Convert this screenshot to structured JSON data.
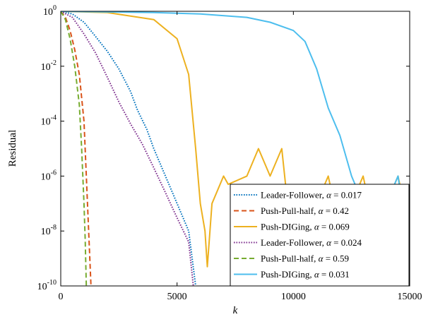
{
  "chart_data": {
    "type": "line",
    "title": "",
    "xlabel": "k",
    "ylabel": "Residual",
    "xlim": [
      0,
      15000
    ],
    "ylim": [
      1e-10,
      1
    ],
    "yscale": "log",
    "grid": false,
    "legend_position": "bottom-right",
    "x_ticks": [
      {
        "value": 0,
        "label": "0"
      },
      {
        "value": 5000,
        "label": "5000"
      },
      {
        "value": 10000,
        "label": "10000"
      },
      {
        "value": 15000,
        "label": "15000"
      }
    ],
    "y_ticks": [
      {
        "value": 1,
        "base": "10",
        "exp": "0"
      },
      {
        "value": 0.01,
        "base": "10",
        "exp": "-2"
      },
      {
        "value": 0.0001,
        "base": "10",
        "exp": "-4"
      },
      {
        "value": 1e-06,
        "base": "10",
        "exp": "-6"
      },
      {
        "value": 1e-08,
        "base": "10",
        "exp": "-8"
      },
      {
        "value": 1e-10,
        "base": "10",
        "exp": "-10"
      }
    ],
    "series": [
      {
        "name": "Leader-Follower",
        "alpha_value": "0.017",
        "color": "#0072BD",
        "style": "dotted",
        "x": [
          0,
          500,
          1000,
          1500,
          2000,
          2500,
          3000,
          3300,
          3700,
          4000,
          4500,
          5000,
          5500,
          5800
        ],
        "y": [
          1,
          0.8,
          0.4,
          0.12,
          0.035,
          0.008,
          0.0012,
          0.00025,
          5e-05,
          1e-05,
          1e-06,
          1e-07,
          1e-08,
          1e-10
        ]
      },
      {
        "name": "Push-Pull-half",
        "alpha_value": "0.42",
        "color": "#D95319",
        "style": "dashed",
        "x": [
          0,
          200,
          400,
          600,
          800,
          1000,
          1100,
          1200,
          1300
        ],
        "y": [
          1,
          0.6,
          0.2,
          0.04,
          0.005,
          0.0001,
          1e-06,
          1e-08,
          1e-10
        ]
      },
      {
        "name": "Push-DIGing",
        "alpha_value": "0.069",
        "color": "#EDB120",
        "style": "solid",
        "x": [
          0,
          2000,
          4000,
          5000,
          5500,
          5800,
          6000,
          6200,
          6300,
          6500,
          7000,
          7200,
          8000,
          8500,
          9000,
          9500,
          10000,
          10500,
          11000,
          11500,
          12000,
          12500,
          13000,
          13500,
          14000,
          14500,
          15000
        ],
        "y": [
          1,
          0.9,
          0.5,
          0.1,
          0.005,
          1e-05,
          1e-07,
          1e-08,
          5e-10,
          1e-07,
          1e-06,
          5e-07,
          1e-06,
          1e-05,
          1e-06,
          1e-05,
          1e-09,
          1e-08,
          1e-07,
          1e-06,
          1e-08,
          1e-07,
          1e-06,
          1e-08,
          1e-07,
          1e-06,
          1e-08
        ]
      },
      {
        "name": "Leader-Follower",
        "alpha_value": "0.024",
        "color": "#7E2F8E",
        "style": "dotted",
        "x": [
          0,
          500,
          1000,
          1500,
          2000,
          2500,
          3000,
          3500,
          4000,
          4500,
          5000,
          5500,
          5700
        ],
        "y": [
          1,
          0.6,
          0.15,
          0.03,
          0.004,
          0.0005,
          8e-05,
          1.5e-05,
          2e-06,
          2.5e-07,
          3e-08,
          4e-09,
          1e-10
        ]
      },
      {
        "name": "Push-Pull-half",
        "alpha_value": "0.59",
        "color": "#77AC30",
        "style": "dashed",
        "x": [
          0,
          200,
          400,
          600,
          800,
          900,
          1000,
          1050,
          1100
        ],
        "y": [
          1,
          0.5,
          0.1,
          0.01,
          0.0004,
          1e-05,
          1e-07,
          5e-09,
          1e-10
        ]
      },
      {
        "name": "Push-DIGing",
        "alpha_value": "0.031",
        "color": "#4DBEEE",
        "style": "solid",
        "x": [
          0,
          2000,
          4000,
          6000,
          8000,
          9000,
          10000,
          10500,
          11000,
          11500,
          12000,
          12500,
          13000,
          13500,
          14000,
          14500,
          15000
        ],
        "y": [
          1,
          0.95,
          0.9,
          0.8,
          0.6,
          0.4,
          0.2,
          0.08,
          0.008,
          0.0003,
          3e-05,
          1e-06,
          1e-07,
          1e-08,
          1e-07,
          1e-06,
          1e-09
        ]
      }
    ]
  }
}
